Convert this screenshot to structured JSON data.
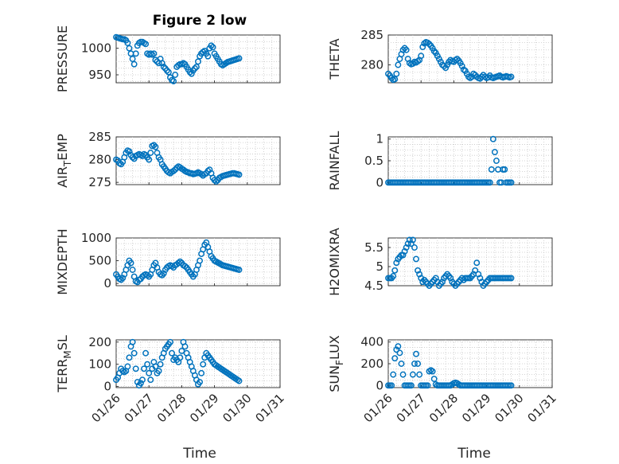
{
  "figure": {
    "title": "Figure 2 low",
    "xlabel": "Time"
  },
  "chart_data": [
    {
      "type": "scatter",
      "ylabel": "PRESSURE",
      "xlim": [
        0,
        5
      ],
      "ylim": [
        935,
        1025
      ],
      "yticks": [
        950,
        1000
      ],
      "xticks": [
        "01/26",
        "01/27",
        "01/28",
        "01/29",
        "01/30",
        "01/31"
      ],
      "show_xticks": false,
      "color": "#0072BD",
      "x": [
        0.0,
        0.05,
        0.1,
        0.15,
        0.2,
        0.25,
        0.3,
        0.35,
        0.4,
        0.45,
        0.5,
        0.55,
        0.6,
        0.65,
        0.7,
        0.75,
        0.8,
        0.85,
        0.9,
        0.95,
        1.0,
        1.05,
        1.1,
        1.15,
        1.2,
        1.25,
        1.3,
        1.35,
        1.4,
        1.45,
        1.5,
        1.55,
        1.6,
        1.65,
        1.7,
        1.75,
        1.8,
        1.85,
        1.9,
        1.95,
        2.0,
        2.05,
        2.1,
        2.15,
        2.2,
        2.25,
        2.3,
        2.35,
        2.4,
        2.45,
        2.5,
        2.55,
        2.6,
        2.65,
        2.7,
        2.75,
        2.8,
        2.85,
        2.9,
        2.95,
        3.0,
        3.05,
        3.1,
        3.15,
        3.2,
        3.25,
        3.3,
        3.35,
        3.4,
        3.45,
        3.5,
        3.55,
        3.6,
        3.65,
        3.7,
        3.75
      ],
      "y": [
        1021,
        1020,
        1019,
        1018,
        1017,
        1017,
        1015,
        1010,
        1000,
        990,
        980,
        970,
        990,
        1005,
        1010,
        1012,
        1012,
        1010,
        1008,
        990,
        988,
        990,
        988,
        990,
        978,
        975,
        972,
        980,
        972,
        965,
        962,
        958,
        955,
        945,
        940,
        938,
        950,
        965,
        968,
        970,
        970,
        972,
        970,
        965,
        960,
        955,
        952,
        958,
        962,
        965,
        975,
        985,
        990,
        993,
        995,
        990,
        985,
        1000,
        1005,
        1002,
        990,
        985,
        980,
        975,
        970,
        968,
        970,
        972,
        974,
        975,
        976,
        977,
        978,
        979,
        980,
        981
      ]
    },
    {
      "type": "scatter",
      "ylabel": "THETA",
      "xlim": [
        0,
        5
      ],
      "ylim": [
        277,
        285
      ],
      "yticks": [
        280,
        285
      ],
      "xticks": [
        "01/26",
        "01/27",
        "01/28",
        "01/29",
        "01/30",
        "01/31"
      ],
      "show_xticks": false,
      "color": "#0072BD",
      "x": [
        0.0,
        0.05,
        0.1,
        0.15,
        0.2,
        0.25,
        0.3,
        0.35,
        0.4,
        0.45,
        0.5,
        0.55,
        0.6,
        0.65,
        0.7,
        0.75,
        0.8,
        0.85,
        0.9,
        0.95,
        1.0,
        1.05,
        1.1,
        1.15,
        1.2,
        1.25,
        1.3,
        1.35,
        1.4,
        1.45,
        1.5,
        1.55,
        1.6,
        1.65,
        1.7,
        1.75,
        1.8,
        1.85,
        1.9,
        1.95,
        2.0,
        2.05,
        2.1,
        2.15,
        2.2,
        2.25,
        2.3,
        2.35,
        2.4,
        2.45,
        2.5,
        2.55,
        2.6,
        2.65,
        2.7,
        2.75,
        2.8,
        2.85,
        2.9,
        2.95,
        3.0,
        3.05,
        3.1,
        3.15,
        3.2,
        3.25,
        3.3,
        3.35,
        3.4,
        3.45,
        3.5,
        3.55,
        3.6,
        3.65,
        3.7,
        3.75
      ],
      "y": [
        278.5,
        278.2,
        277.8,
        277.5,
        277.6,
        278.5,
        280.0,
        281.0,
        281.8,
        282.5,
        282.8,
        282.5,
        281.0,
        280.3,
        280.1,
        280.2,
        280.5,
        280.4,
        280.6,
        280.8,
        281.5,
        283.0,
        283.6,
        283.8,
        283.7,
        283.5,
        283.2,
        282.8,
        282.3,
        282.0,
        281.5,
        281.0,
        280.5,
        280.0,
        279.8,
        279.5,
        280.0,
        280.5,
        280.8,
        280.6,
        280.5,
        280.8,
        281.0,
        280.7,
        280.3,
        279.8,
        279.2,
        279.0,
        278.5,
        278.0,
        277.8,
        278.0,
        278.5,
        278.3,
        278.0,
        277.8,
        277.7,
        278.0,
        278.3,
        278.0,
        277.8,
        277.9,
        278.2,
        277.9,
        277.8,
        277.9,
        278.0,
        278.1,
        278.2,
        278.0,
        277.9,
        278.0,
        278.1,
        278.0,
        277.9,
        278.0
      ]
    },
    {
      "type": "scatter",
      "ylabel": "AIR_TEMP",
      "xlim": [
        0,
        5
      ],
      "ylim": [
        274.5,
        285
      ],
      "yticks": [
        275,
        280,
        285
      ],
      "xticks": [
        "01/26",
        "01/27",
        "01/28",
        "01/29",
        "01/30",
        "01/31"
      ],
      "show_xticks": false,
      "color": "#0072BD",
      "x": [
        0.0,
        0.05,
        0.1,
        0.15,
        0.2,
        0.25,
        0.3,
        0.35,
        0.4,
        0.45,
        0.5,
        0.55,
        0.6,
        0.65,
        0.7,
        0.75,
        0.8,
        0.85,
        0.9,
        0.95,
        1.0,
        1.05,
        1.1,
        1.15,
        1.2,
        1.25,
        1.3,
        1.35,
        1.4,
        1.45,
        1.5,
        1.55,
        1.6,
        1.65,
        1.7,
        1.75,
        1.8,
        1.85,
        1.9,
        1.95,
        2.0,
        2.05,
        2.1,
        2.15,
        2.2,
        2.25,
        2.3,
        2.35,
        2.4,
        2.45,
        2.5,
        2.55,
        2.6,
        2.65,
        2.7,
        2.75,
        2.8,
        2.85,
        2.9,
        2.95,
        3.0,
        3.05,
        3.1,
        3.15,
        3.2,
        3.25,
        3.3,
        3.35,
        3.4,
        3.45,
        3.5,
        3.55,
        3.6,
        3.65,
        3.7,
        3.75
      ],
      "y": [
        280.0,
        279.8,
        279.2,
        279.0,
        279.5,
        280.5,
        281.5,
        282.0,
        281.8,
        281.0,
        280.5,
        280.2,
        280.8,
        281.0,
        281.2,
        281.0,
        280.8,
        281.2,
        281.0,
        280.5,
        280.0,
        281.5,
        283.0,
        283.2,
        282.8,
        281.5,
        280.5,
        280.0,
        279.0,
        278.5,
        278.0,
        277.5,
        277.2,
        277.0,
        277.3,
        277.5,
        277.8,
        278.2,
        278.5,
        278.3,
        278.0,
        277.8,
        277.5,
        277.3,
        277.2,
        277.0,
        277.0,
        276.8,
        276.9,
        277.0,
        277.2,
        277.0,
        276.8,
        276.5,
        276.8,
        277.0,
        277.5,
        277.8,
        277.0,
        276.0,
        275.5,
        275.2,
        275.5,
        276.0,
        276.2,
        276.4,
        276.5,
        276.6,
        276.7,
        276.8,
        276.9,
        277.0,
        277.0,
        276.9,
        276.8,
        276.7
      ]
    },
    {
      "type": "scatter",
      "ylabel": "RAINFALL",
      "xlim": [
        0,
        5
      ],
      "ylim": [
        -0.05,
        1.05
      ],
      "yticks": [
        0,
        0.5,
        1
      ],
      "xticks": [
        "01/26",
        "01/27",
        "01/28",
        "01/29",
        "01/30",
        "01/31"
      ],
      "show_xticks": false,
      "color": "#0072BD",
      "x": [
        0.0,
        0.05,
        0.1,
        0.15,
        0.2,
        0.25,
        0.3,
        0.35,
        0.4,
        0.45,
        0.5,
        0.55,
        0.6,
        0.65,
        0.7,
        0.75,
        0.8,
        0.85,
        0.9,
        0.95,
        1.0,
        1.05,
        1.1,
        1.15,
        1.2,
        1.25,
        1.3,
        1.35,
        1.4,
        1.45,
        1.5,
        1.55,
        1.6,
        1.65,
        1.7,
        1.75,
        1.8,
        1.85,
        1.9,
        1.95,
        2.0,
        2.05,
        2.1,
        2.15,
        2.2,
        2.25,
        2.3,
        2.35,
        2.4,
        2.45,
        2.5,
        2.55,
        2.6,
        2.65,
        2.7,
        2.75,
        2.8,
        2.85,
        2.9,
        2.95,
        3.0,
        3.05,
        3.1,
        3.15,
        3.2,
        3.25,
        3.3,
        3.35,
        3.4,
        3.45,
        3.5,
        3.55,
        3.6,
        3.65,
        3.7,
        3.75
      ],
      "y": [
        0,
        0,
        0,
        0,
        0,
        0,
        0,
        0,
        0,
        0,
        0,
        0,
        0,
        0,
        0,
        0,
        0,
        0,
        0,
        0,
        0,
        0,
        0,
        0,
        0,
        0,
        0,
        0,
        0,
        0,
        0,
        0,
        0,
        0,
        0,
        0,
        0,
        0,
        0,
        0,
        0,
        0,
        0,
        0,
        0,
        0,
        0,
        0,
        0,
        0,
        0,
        0,
        0,
        0,
        0,
        0,
        0,
        0,
        0,
        0,
        0,
        0,
        0,
        0.3,
        1.0,
        0.7,
        0.5,
        0.3,
        0,
        0,
        0.3,
        0.3,
        0,
        0,
        0,
        0
      ]
    },
    {
      "type": "scatter",
      "ylabel": "MIXDEPTH",
      "xlim": [
        0,
        5
      ],
      "ylim": [
        -50,
        1000
      ],
      "yticks": [
        0,
        500,
        1000
      ],
      "xticks": [
        "01/26",
        "01/27",
        "01/28",
        "01/29",
        "01/30",
        "01/31"
      ],
      "show_xticks": false,
      "color": "#0072BD",
      "x": [
        0.0,
        0.05,
        0.1,
        0.15,
        0.2,
        0.25,
        0.3,
        0.35,
        0.4,
        0.45,
        0.5,
        0.55,
        0.6,
        0.65,
        0.7,
        0.75,
        0.8,
        0.85,
        0.9,
        0.95,
        1.0,
        1.05,
        1.1,
        1.15,
        1.2,
        1.25,
        1.3,
        1.35,
        1.4,
        1.45,
        1.5,
        1.55,
        1.6,
        1.65,
        1.7,
        1.75,
        1.8,
        1.85,
        1.9,
        1.95,
        2.0,
        2.05,
        2.1,
        2.15,
        2.2,
        2.25,
        2.3,
        2.35,
        2.4,
        2.45,
        2.5,
        2.55,
        2.6,
        2.65,
        2.7,
        2.75,
        2.8,
        2.85,
        2.9,
        2.95,
        3.0,
        3.05,
        3.1,
        3.15,
        3.2,
        3.25,
        3.3,
        3.35,
        3.4,
        3.45,
        3.5,
        3.55,
        3.6,
        3.65,
        3.7,
        3.75
      ],
      "y": [
        200,
        150,
        100,
        80,
        120,
        200,
        300,
        400,
        500,
        450,
        300,
        150,
        50,
        30,
        80,
        100,
        150,
        180,
        200,
        180,
        150,
        200,
        300,
        400,
        450,
        350,
        250,
        200,
        180,
        220,
        300,
        350,
        380,
        400,
        380,
        350,
        400,
        420,
        450,
        480,
        450,
        400,
        380,
        350,
        300,
        250,
        200,
        150,
        200,
        300,
        400,
        500,
        650,
        750,
        850,
        900,
        800,
        700,
        600,
        550,
        500,
        480,
        460,
        440,
        420,
        400,
        390,
        380,
        370,
        360,
        350,
        340,
        330,
        320,
        310,
        300
      ]
    },
    {
      "type": "scatter",
      "ylabel": "H2OMIXRA",
      "xlim": [
        0,
        5
      ],
      "ylim": [
        4.5,
        5.75
      ],
      "yticks": [
        4.5,
        5,
        5.5
      ],
      "xticks": [
        "01/26",
        "01/27",
        "01/28",
        "01/29",
        "01/30",
        "01/31"
      ],
      "show_xticks": false,
      "color": "#0072BD",
      "x": [
        0.0,
        0.05,
        0.1,
        0.15,
        0.2,
        0.25,
        0.3,
        0.35,
        0.4,
        0.45,
        0.5,
        0.55,
        0.6,
        0.65,
        0.7,
        0.75,
        0.8,
        0.85,
        0.9,
        0.95,
        1.0,
        1.05,
        1.1,
        1.15,
        1.2,
        1.25,
        1.3,
        1.35,
        1.4,
        1.45,
        1.5,
        1.55,
        1.6,
        1.65,
        1.7,
        1.75,
        1.8,
        1.85,
        1.9,
        1.95,
        2.0,
        2.05,
        2.1,
        2.15,
        2.2,
        2.25,
        2.3,
        2.35,
        2.4,
        2.45,
        2.5,
        2.55,
        2.6,
        2.65,
        2.7,
        2.75,
        2.8,
        2.85,
        2.9,
        2.95,
        3.0,
        3.05,
        3.1,
        3.15,
        3.2,
        3.25,
        3.3,
        3.35,
        3.4,
        3.45,
        3.5,
        3.55,
        3.6,
        3.65,
        3.7,
        3.75
      ],
      "y": [
        4.7,
        4.7,
        4.7,
        4.75,
        4.9,
        5.1,
        5.2,
        5.25,
        5.3,
        5.3,
        5.4,
        5.5,
        5.6,
        5.7,
        5.6,
        5.7,
        5.5,
        5.2,
        4.9,
        4.8,
        4.7,
        4.6,
        4.65,
        4.6,
        4.55,
        4.5,
        4.55,
        4.6,
        4.65,
        4.7,
        4.6,
        4.5,
        4.55,
        4.6,
        4.7,
        4.75,
        4.8,
        4.75,
        4.7,
        4.6,
        4.55,
        4.5,
        4.55,
        4.6,
        4.65,
        4.7,
        4.65,
        4.7,
        4.7,
        4.7,
        4.7,
        4.75,
        4.8,
        4.9,
        5.1,
        4.8,
        4.7,
        4.6,
        4.5,
        4.55,
        4.6,
        4.65,
        4.7,
        4.7,
        4.7,
        4.7,
        4.7,
        4.7,
        4.7,
        4.7,
        4.7,
        4.7,
        4.7,
        4.7,
        4.7,
        4.7
      ]
    },
    {
      "type": "scatter",
      "ylabel": "TERR_MSL",
      "xlim": [
        0,
        5
      ],
      "ylim": [
        -5,
        210
      ],
      "yticks": [
        0,
        100,
        200
      ],
      "xticks": [
        "01/26",
        "01/27",
        "01/28",
        "01/29",
        "01/30",
        "01/31"
      ],
      "show_xticks": true,
      "color": "#0072BD",
      "x": [
        0.0,
        0.05,
        0.1,
        0.15,
        0.2,
        0.25,
        0.3,
        0.35,
        0.4,
        0.45,
        0.5,
        0.55,
        0.6,
        0.65,
        0.7,
        0.75,
        0.8,
        0.85,
        0.9,
        0.95,
        1.0,
        1.05,
        1.1,
        1.15,
        1.2,
        1.25,
        1.3,
        1.35,
        1.4,
        1.45,
        1.5,
        1.55,
        1.6,
        1.65,
        1.7,
        1.75,
        1.8,
        1.85,
        1.9,
        1.95,
        2.0,
        2.05,
        2.1,
        2.15,
        2.2,
        2.25,
        2.3,
        2.35,
        2.4,
        2.45,
        2.5,
        2.55,
        2.6,
        2.65,
        2.7,
        2.75,
        2.8,
        2.85,
        2.9,
        2.95,
        3.0,
        3.05,
        3.1,
        3.15,
        3.2,
        3.25,
        3.3,
        3.35,
        3.4,
        3.45,
        3.5,
        3.55,
        3.6,
        3.65,
        3.7,
        3.75
      ],
      "y": [
        30,
        40,
        60,
        80,
        70,
        65,
        70,
        90,
        130,
        180,
        200,
        150,
        80,
        20,
        5,
        15,
        30,
        80,
        150,
        100,
        60,
        30,
        80,
        110,
        90,
        60,
        70,
        100,
        130,
        150,
        170,
        180,
        190,
        200,
        150,
        120,
        130,
        120,
        110,
        130,
        160,
        200,
        180,
        150,
        130,
        110,
        90,
        70,
        50,
        30,
        10,
        20,
        60,
        100,
        130,
        150,
        140,
        130,
        120,
        110,
        100,
        95,
        90,
        85,
        80,
        75,
        70,
        65,
        60,
        55,
        50,
        45,
        40,
        35,
        30,
        25
      ]
    },
    {
      "type": "scatter",
      "ylabel": "SUN_FLUX",
      "xlim": [
        0,
        5
      ],
      "ylim": [
        -20,
        420
      ],
      "yticks": [
        0,
        200,
        400
      ],
      "xticks": [
        "01/26",
        "01/27",
        "01/28",
        "01/29",
        "01/30",
        "01/31"
      ],
      "show_xticks": true,
      "color": "#0072BD",
      "x": [
        0.0,
        0.05,
        0.1,
        0.15,
        0.2,
        0.25,
        0.3,
        0.35,
        0.4,
        0.45,
        0.5,
        0.55,
        0.6,
        0.65,
        0.7,
        0.75,
        0.8,
        0.85,
        0.9,
        0.95,
        1.0,
        1.05,
        1.1,
        1.15,
        1.2,
        1.25,
        1.3,
        1.35,
        1.4,
        1.45,
        1.5,
        1.55,
        1.6,
        1.65,
        1.7,
        1.75,
        1.8,
        1.85,
        1.9,
        1.95,
        2.0,
        2.05,
        2.1,
        2.15,
        2.2,
        2.25,
        2.3,
        2.35,
        2.4,
        2.45,
        2.5,
        2.55,
        2.6,
        2.65,
        2.7,
        2.75,
        2.8,
        2.85,
        2.9,
        2.95,
        3.0,
        3.05,
        3.1,
        3.15,
        3.2,
        3.25,
        3.3,
        3.35,
        3.4,
        3.45,
        3.5,
        3.55,
        3.6,
        3.65,
        3.7,
        3.75
      ],
      "y": [
        0,
        0,
        0,
        100,
        250,
        330,
        360,
        300,
        200,
        100,
        0,
        0,
        0,
        0,
        0,
        100,
        200,
        290,
        200,
        100,
        0,
        0,
        0,
        0,
        0,
        130,
        140,
        130,
        60,
        10,
        0,
        0,
        0,
        0,
        0,
        0,
        0,
        0,
        0,
        10,
        20,
        25,
        20,
        10,
        0,
        0,
        0,
        0,
        0,
        0,
        0,
        0,
        0,
        0,
        0,
        0,
        0,
        0,
        0,
        0,
        0,
        0,
        0,
        0,
        0,
        0,
        0,
        0,
        0,
        0,
        0,
        0,
        0,
        0,
        0,
        0
      ]
    }
  ]
}
